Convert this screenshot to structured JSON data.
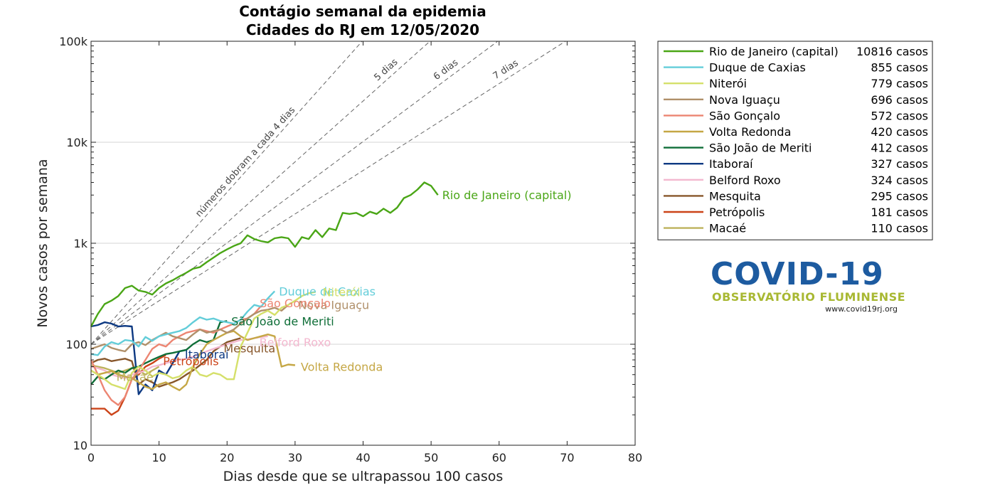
{
  "chart_data": {
    "type": "line",
    "title": [
      "Contágio semanal da epidemia",
      "Cidades do RJ em 12/05/2020"
    ],
    "xlabel": "Dias desde que se ultrapassou 100 casos",
    "ylabel": "Novos casos por semana",
    "xlim": [
      0,
      80
    ],
    "ylim": [
      10,
      100000
    ],
    "yscale": "log",
    "grid": "horizontal",
    "xticks": [
      "0",
      "10",
      "20",
      "30",
      "40",
      "50",
      "60",
      "70",
      "80"
    ],
    "yticks": [
      "10",
      "100",
      "1k",
      "10k",
      "100k"
    ],
    "reference_lines": [
      {
        "label": "números dobram a cada 4 dias",
        "doubling_days": 4
      },
      {
        "label": "5 dias",
        "doubling_days": 5
      },
      {
        "label": "6 dias",
        "doubling_days": 6
      },
      {
        "label": "7 dias",
        "doubling_days": 7
      }
    ],
    "legend_position": "outside right",
    "series": [
      {
        "name": "Rio de Janeiro (capital)",
        "cases": "10816 casos",
        "label": "Rio de Janeiro (capital)",
        "color": "#4aa616",
        "x": [
          0,
          1,
          2,
          3,
          4,
          5,
          6,
          7,
          8,
          9,
          10,
          11,
          12,
          13,
          14,
          15,
          16,
          17,
          18,
          19,
          20,
          21,
          22,
          23,
          24,
          25,
          26,
          27,
          28,
          29,
          30,
          31,
          32,
          33,
          34,
          35,
          36,
          37,
          38,
          39,
          40,
          41,
          42,
          43,
          44,
          45,
          46,
          47,
          48,
          49,
          50,
          51
        ],
        "y": [
          150,
          200,
          250,
          270,
          300,
          360,
          380,
          340,
          330,
          310,
          360,
          400,
          430,
          470,
          510,
          560,
          580,
          650,
          720,
          800,
          870,
          940,
          1000,
          1200,
          1100,
          1050,
          1020,
          1120,
          1150,
          1120,
          920,
          1150,
          1100,
          1350,
          1150,
          1400,
          1350,
          2000,
          1950,
          2000,
          1850,
          2050,
          1950,
          2200,
          2000,
          2250,
          2800,
          3000,
          3400,
          4000,
          3700,
          3000
        ]
      },
      {
        "name": "Duque de Caxias",
        "cases": "855 casos",
        "label": "Duque de Caxias",
        "color": "#63cdd9",
        "x": [
          0,
          1,
          2,
          3,
          4,
          5,
          6,
          7,
          8,
          9,
          10,
          11,
          12,
          13,
          14,
          15,
          16,
          17,
          18,
          19,
          20,
          21,
          22,
          23,
          24,
          25,
          26,
          27
        ],
        "y": [
          80,
          78,
          95,
          105,
          100,
          110,
          108,
          95,
          118,
          108,
          120,
          125,
          130,
          135,
          145,
          165,
          185,
          175,
          180,
          170,
          165,
          160,
          175,
          210,
          245,
          235,
          285,
          335
        ]
      },
      {
        "name": "Niterói",
        "cases": "779 casos",
        "label": "Niterói",
        "color": "#d5e06a",
        "x": [
          0,
          1,
          2,
          3,
          4,
          5,
          6,
          7,
          8,
          9,
          10,
          11,
          12,
          13,
          14,
          15,
          16,
          17,
          18,
          19,
          20,
          21,
          22,
          23,
          24,
          25,
          26,
          27,
          28,
          29,
          30,
          31,
          32,
          33
        ],
        "y": [
          55,
          50,
          45,
          40,
          38,
          36,
          52,
          60,
          55,
          48,
          52,
          50,
          46,
          48,
          55,
          60,
          50,
          48,
          52,
          50,
          45,
          45,
          95,
          130,
          180,
          200,
          215,
          195,
          230,
          245,
          270,
          300,
          320,
          330
        ]
      },
      {
        "name": "Nova Iguaçu",
        "cases": "696 casos",
        "label": "Nova Iguaçu",
        "color": "#b0906a",
        "x": [
          0,
          1,
          2,
          3,
          4,
          5,
          6,
          7,
          8,
          9,
          10,
          11,
          12,
          13,
          14,
          15,
          16,
          17,
          18,
          19,
          20,
          21,
          22,
          23,
          24,
          25,
          26,
          27,
          28,
          29
        ],
        "y": [
          90,
          95,
          100,
          92,
          88,
          85,
          100,
          105,
          98,
          110,
          120,
          130,
          120,
          115,
          110,
          125,
          140,
          130,
          135,
          140,
          130,
          140,
          160,
          180,
          200,
          215,
          220,
          230,
          215,
          245
        ]
      },
      {
        "name": "São Gonçalo",
        "cases": "572 casos",
        "label": "São Gonçalo",
        "color": "#ec8572",
        "x": [
          0,
          1,
          2,
          3,
          4,
          5,
          6,
          7,
          8,
          9,
          10,
          11,
          12,
          13,
          14,
          15,
          16,
          17,
          18,
          19,
          20,
          21,
          22,
          23,
          24,
          25
        ],
        "y": [
          70,
          50,
          35,
          28,
          25,
          30,
          45,
          55,
          70,
          90,
          100,
          95,
          110,
          120,
          130,
          135,
          140,
          135,
          130,
          140,
          150,
          160,
          175,
          180,
          200,
          240
        ]
      },
      {
        "name": "Volta Redonda",
        "cases": "420 casos",
        "label": "Volta Redonda",
        "color": "#c5a745",
        "x": [
          0,
          1,
          2,
          3,
          4,
          5,
          6,
          7,
          8,
          9,
          10,
          11,
          12,
          13,
          14,
          15,
          16,
          17,
          18,
          19,
          20,
          21,
          22,
          23,
          24,
          25,
          26,
          27,
          28,
          29,
          30
        ],
        "y": [
          55,
          50,
          52,
          54,
          50,
          48,
          46,
          42,
          38,
          36,
          40,
          42,
          38,
          35,
          40,
          60,
          80,
          100,
          110,
          120,
          130,
          135,
          120,
          110,
          115,
          120,
          125,
          120,
          60,
          63,
          62
        ]
      },
      {
        "name": "São João de Meriti",
        "cases": "412 casos",
        "label": "São João de Meriti",
        "color": "#0f6e38",
        "x": [
          0,
          1,
          2,
          3,
          4,
          5,
          6,
          7,
          8,
          9,
          10,
          11,
          12,
          13,
          14,
          15,
          16,
          17,
          18,
          19,
          20
        ],
        "y": [
          40,
          48,
          45,
          50,
          55,
          52,
          58,
          60,
          65,
          70,
          75,
          80,
          82,
          85,
          88,
          100,
          110,
          105,
          110,
          165,
          170
        ]
      },
      {
        "name": "Itaboraí",
        "cases": "327 casos",
        "label": "Itaboraí",
        "color": "#0d3982",
        "x": [
          0,
          1,
          2,
          3,
          4,
          5,
          6,
          7,
          8,
          9,
          10,
          11,
          12,
          13,
          14
        ],
        "y": [
          150,
          155,
          165,
          160,
          150,
          152,
          150,
          32,
          40,
          35,
          55,
          50,
          65,
          85,
          88
        ]
      },
      {
        "name": "Belford Roxo",
        "cases": "324 casos",
        "label": "Belford Roxo",
        "color": "#f3b8cf",
        "x": [
          0,
          1,
          2,
          3,
          4,
          5,
          6,
          7,
          8,
          9,
          10,
          11,
          12,
          13,
          14,
          15,
          16,
          17,
          18,
          19,
          20,
          21,
          22,
          23,
          24,
          25,
          26
        ],
        "y": [
          60,
          58,
          55,
          50,
          48,
          46,
          50,
          52,
          55,
          60,
          62,
          65,
          68,
          70,
          72,
          75,
          80,
          85,
          90,
          95,
          100,
          105,
          110,
          112,
          115,
          118,
          120
        ]
      },
      {
        "name": "Mesquita",
        "cases": "295 casos",
        "label": "Mesquita",
        "color": "#87562a",
        "x": [
          0,
          1,
          2,
          3,
          4,
          5,
          6,
          7,
          8,
          9,
          10,
          11,
          12,
          13,
          14,
          15,
          16,
          17,
          18,
          19,
          20,
          21,
          22
        ],
        "y": [
          65,
          70,
          72,
          68,
          70,
          72,
          68,
          40,
          45,
          42,
          38,
          40,
          42,
          45,
          50,
          55,
          62,
          70,
          85,
          95,
          105,
          110,
          115
        ]
      },
      {
        "name": "Petrópolis",
        "cases": "181 casos",
        "label": "Petrópolis",
        "color": "#cc4419",
        "x": [
          0,
          1,
          2,
          3,
          4,
          5,
          6,
          7,
          8,
          9,
          10,
          11
        ],
        "y": [
          23,
          23,
          23,
          20,
          22,
          30,
          45,
          50,
          60,
          65,
          72,
          78
        ]
      },
      {
        "name": "Macaé",
        "cases": "110 casos",
        "label": "Macaé",
        "color": "#bdb25c",
        "x": [
          0,
          1,
          2,
          3,
          4,
          5,
          6,
          7,
          8,
          9,
          10
        ],
        "y": [
          62,
          60,
          58,
          55,
          52,
          55,
          58,
          55,
          50,
          55,
          60
        ]
      }
    ]
  },
  "logo": {
    "main": "COVID-19",
    "subtitle": "OBSERVATÓRIO FLUMINENSE",
    "url": "www.covid19rj.org"
  }
}
